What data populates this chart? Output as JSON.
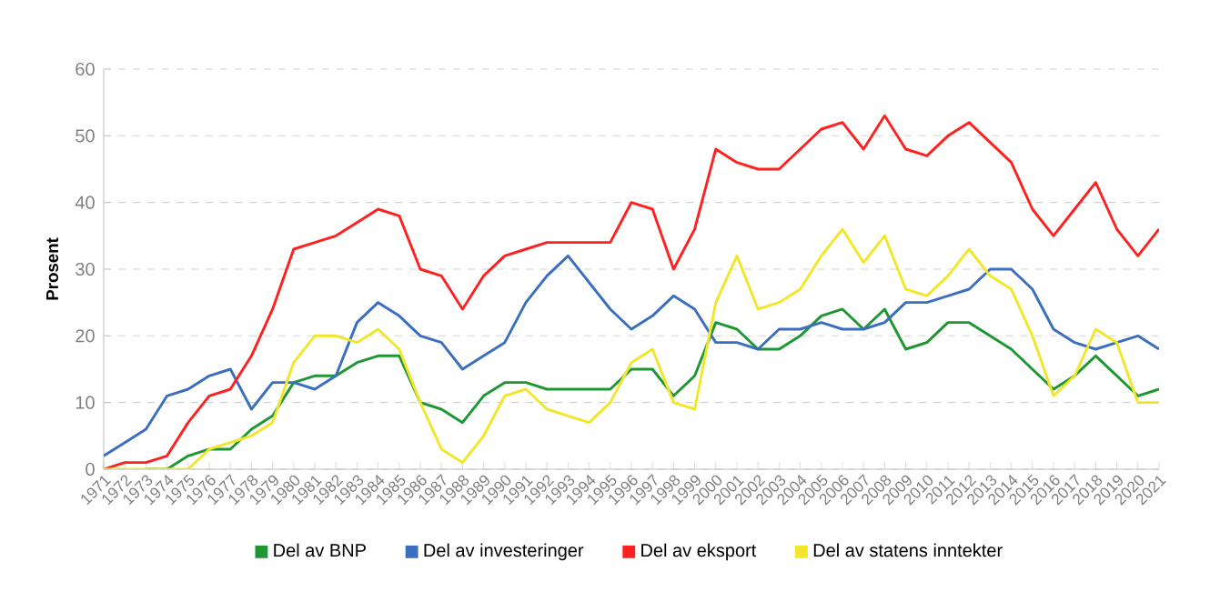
{
  "chart_data": {
    "type": "line",
    "ylabel": "Prosent",
    "categories": [
      "1971",
      "1972",
      "1973",
      "1974",
      "1975",
      "1976",
      "1977",
      "1978",
      "1979",
      "1980",
      "1981",
      "1982",
      "1983",
      "1984",
      "1985",
      "1986",
      "1987",
      "1988",
      "1989",
      "1990",
      "1991",
      "1992",
      "1993",
      "1994",
      "1995",
      "1996",
      "1997",
      "1998",
      "1999",
      "2000",
      "2001",
      "2002",
      "2003",
      "2004",
      "2005",
      "2006",
      "2007",
      "2008",
      "2009",
      "2010",
      "2011",
      "2012",
      "2013",
      "2014",
      "2015",
      "2016",
      "2017",
      "2018",
      "2019",
      "2020",
      "2021"
    ],
    "series": [
      {
        "name": "Del av BNP",
        "color": "#1e9632",
        "values": [
          null,
          null,
          0,
          0,
          2,
          3,
          3,
          6,
          8,
          13,
          14,
          14,
          16,
          17,
          17,
          10,
          9,
          7,
          11,
          13,
          13,
          12,
          12,
          12,
          12,
          15,
          15,
          11,
          14,
          22,
          21,
          18,
          18,
          20,
          23,
          24,
          21,
          24,
          18,
          19,
          22,
          22,
          20,
          18,
          15,
          12,
          14,
          17,
          14,
          11,
          12
        ]
      },
      {
        "name": "Del av investeringer",
        "color": "#3a6fc0",
        "values": [
          2,
          4,
          6,
          11,
          12,
          14,
          15,
          9,
          13,
          13,
          12,
          14,
          22,
          25,
          23,
          20,
          19,
          15,
          17,
          19,
          25,
          29,
          32,
          28,
          24,
          21,
          23,
          26,
          24,
          19,
          19,
          18,
          21,
          21,
          22,
          21,
          21,
          22,
          25,
          25,
          26,
          27,
          30,
          30,
          27,
          21,
          19,
          18,
          19,
          20,
          18
        ]
      },
      {
        "name": "Del av eksport",
        "color": "#ff2020",
        "values": [
          0,
          1,
          1,
          2,
          7,
          11,
          12,
          17,
          24,
          33,
          34,
          35,
          37,
          39,
          38,
          30,
          29,
          24,
          29,
          32,
          33,
          34,
          34,
          34,
          34,
          40,
          39,
          30,
          36,
          48,
          46,
          45,
          45,
          48,
          51,
          52,
          48,
          53,
          48,
          47,
          50,
          52,
          49,
          46,
          39,
          35,
          39,
          43,
          36,
          32,
          36
        ]
      },
      {
        "name": "Del av statens inntekter",
        "color": "#f2e62a",
        "values": [
          0,
          0,
          0,
          0,
          0,
          3,
          4,
          5,
          7,
          16,
          20,
          20,
          19,
          21,
          18,
          10,
          3,
          1,
          5,
          11,
          12,
          9,
          8,
          7,
          10,
          16,
          18,
          10,
          9,
          25,
          32,
          24,
          25,
          27,
          32,
          36,
          31,
          35,
          27,
          26,
          29,
          33,
          29,
          27,
          20,
          11,
          14,
          21,
          19,
          10,
          10
        ]
      }
    ],
    "ylim": [
      0,
      60
    ],
    "yticks": [
      0,
      10,
      20,
      30,
      40,
      50,
      60
    ],
    "grid": "y",
    "legend": "bottom",
    "marker": "none",
    "line_style": "solid"
  }
}
